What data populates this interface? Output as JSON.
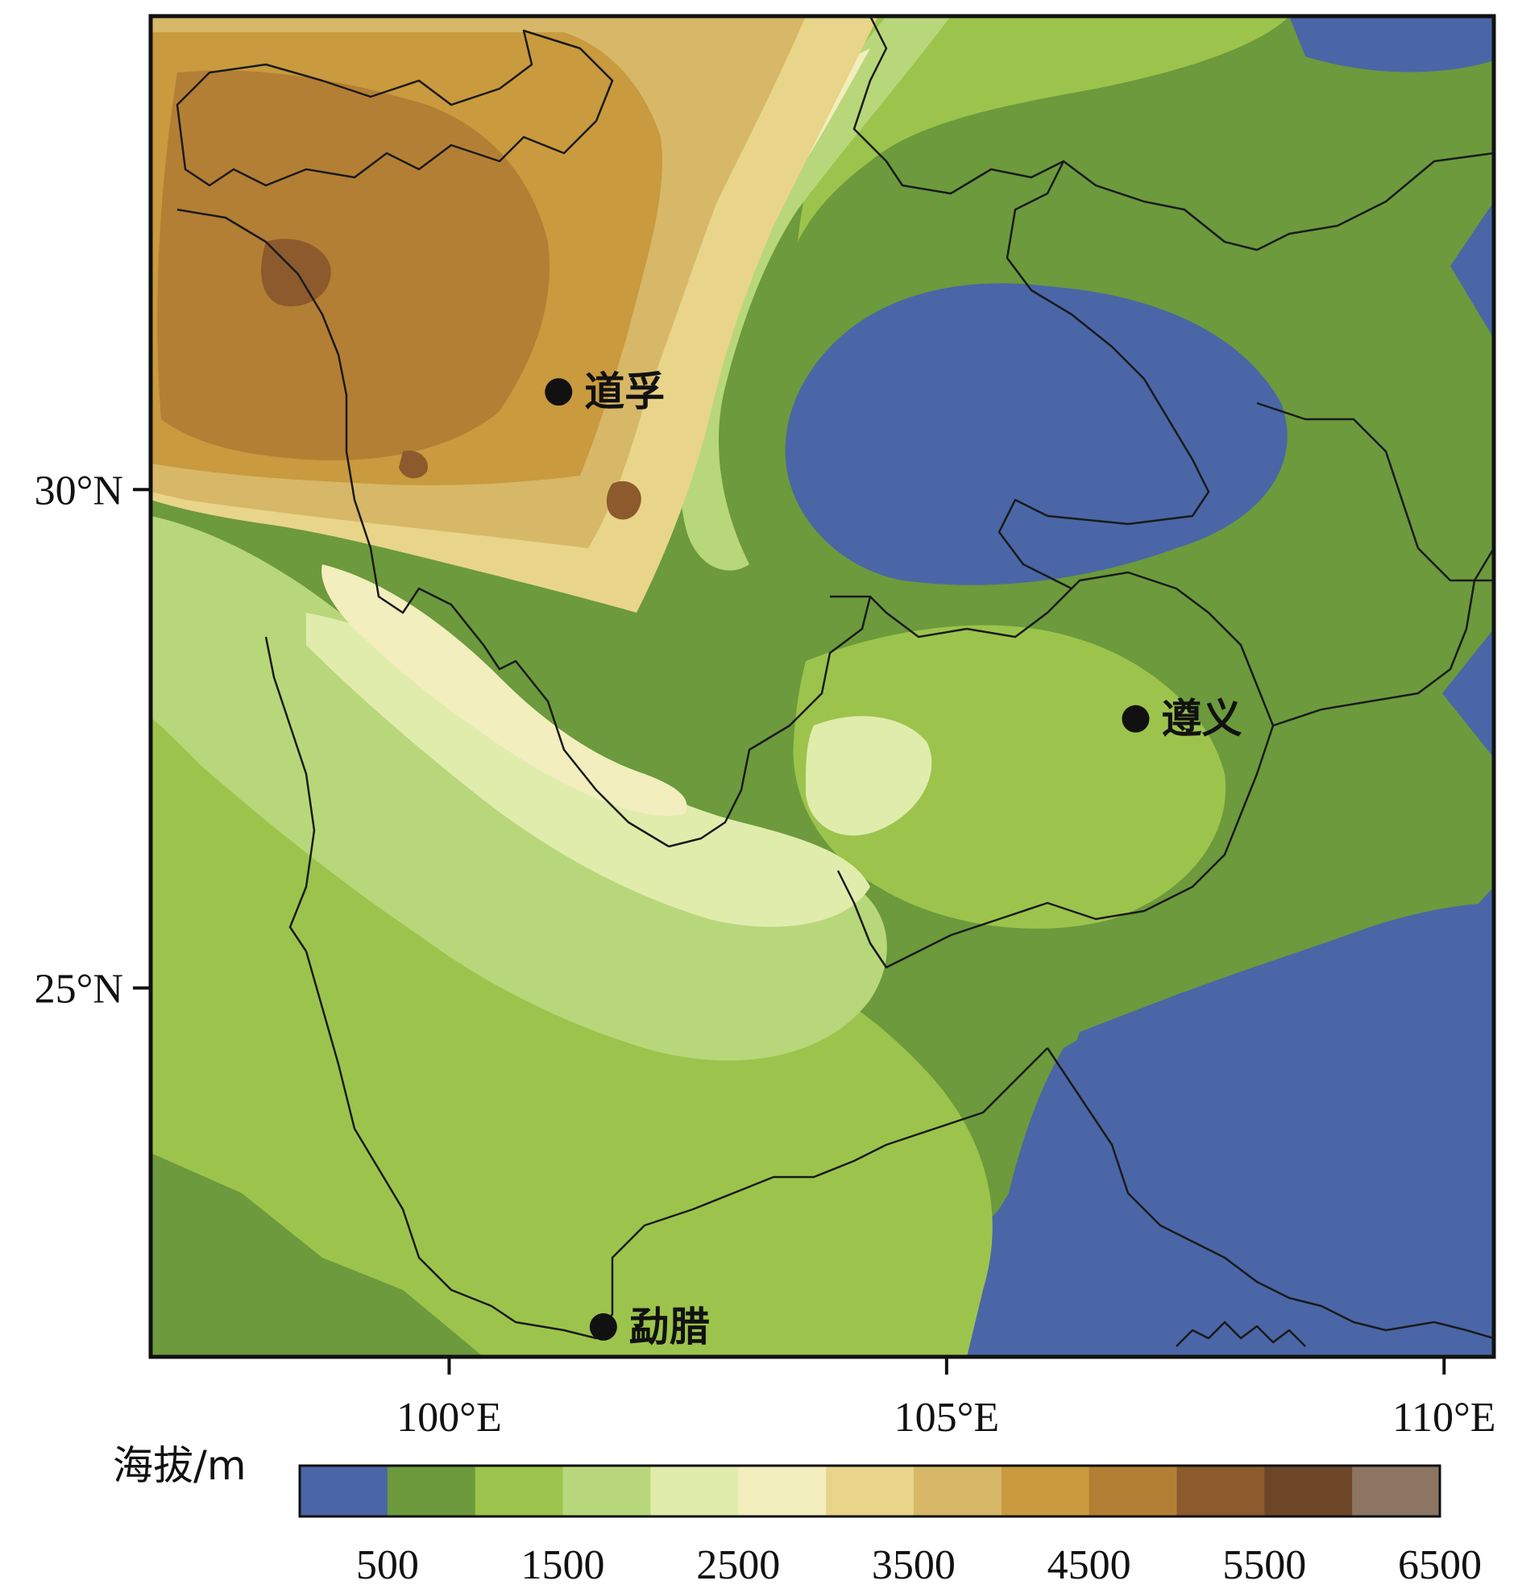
{
  "map": {
    "lon_range": [
      97,
      110.5
    ],
    "lat_range": [
      21.3,
      34.75
    ],
    "elevation_colors": {
      "below_500": "#4a66a6",
      "500_1000": "#6c9a3c",
      "1000_1500": "#9cc44c",
      "1500_2000": "#b8d77a",
      "2000_2500": "#e0ecac",
      "2500_3000": "#f2eebe",
      "3000_3500": "#e8d58a",
      "3500_4000": "#d7b868",
      "4000_4500": "#c99a3e",
      "4500_5000": "#b37f34",
      "5000_5500": "#8c5a2c",
      "5500_6000": "#6d4628",
      "6000_6500": "#8c7562"
    },
    "boundary_color": "#1a1a1a"
  },
  "axes": {
    "x_ticks": [
      {
        "value": 100,
        "label": "100°E"
      },
      {
        "value": 105,
        "label": "105°E"
      },
      {
        "value": 110,
        "label": "110°E"
      }
    ],
    "y_ticks": [
      {
        "value": 30,
        "label": "30°N"
      },
      {
        "value": 25,
        "label": "25°N"
      }
    ]
  },
  "cities": [
    {
      "name": "道孚",
      "lon": 101.1,
      "lat": 30.98
    },
    {
      "name": "遵义",
      "lon": 106.9,
      "lat": 27.7
    },
    {
      "name": "勐腊",
      "lon": 101.55,
      "lat": 21.6
    }
  ],
  "legend": {
    "title": "海拔/m",
    "colors": [
      "#4a66a6",
      "#6c9a3c",
      "#9cc44c",
      "#b8d77a",
      "#e0ecac",
      "#f2eebe",
      "#e8d58a",
      "#d7b868",
      "#c99a3e",
      "#b37f34",
      "#8c5a2c",
      "#6d4628",
      "#8c7562"
    ],
    "tick_labels": [
      "500",
      "1500",
      "2500",
      "3500",
      "4500",
      "5500",
      "6500"
    ]
  }
}
